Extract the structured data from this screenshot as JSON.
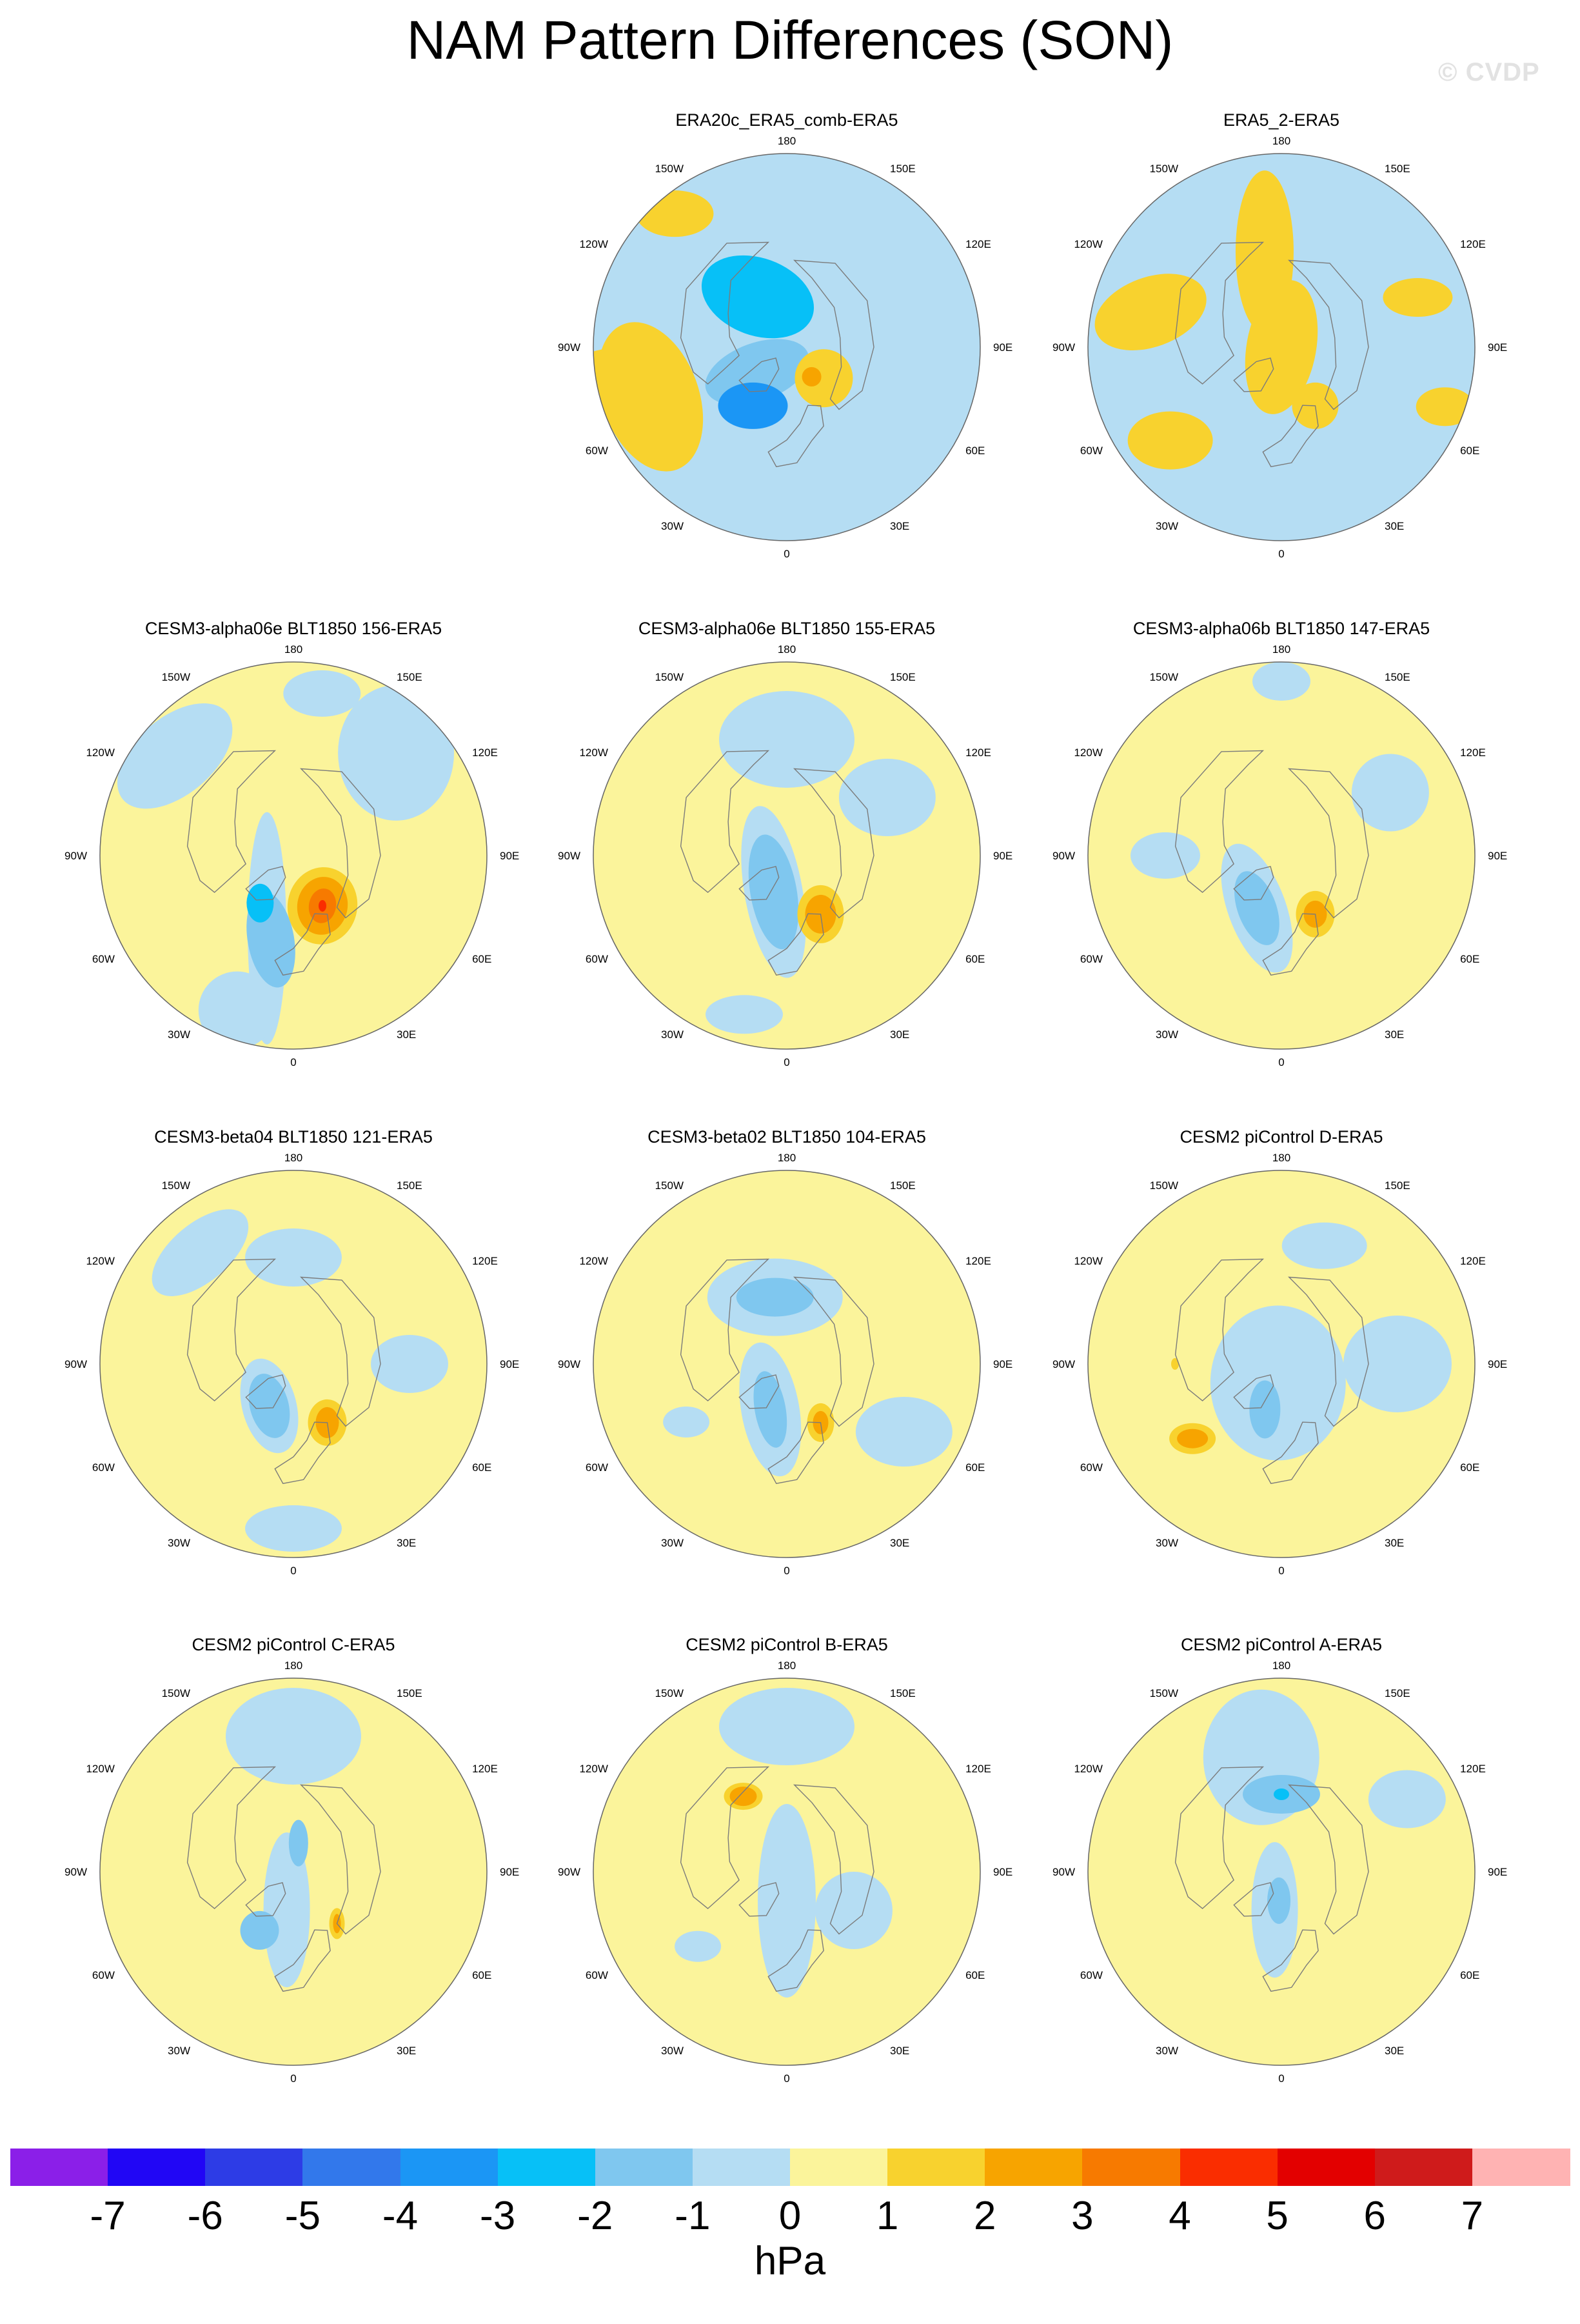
{
  "title": "NAM Pattern Differences (SON)",
  "watermark": "© CVDP",
  "lon_labels": {
    "lon_180": "180",
    "lon_150w": "150W",
    "lon_150e": "150E",
    "lon_120w": "120W",
    "lon_120e": "120E",
    "lon_90w": "90W",
    "lon_90e": "90E",
    "lon_60w": "60W",
    "lon_60e": "60E",
    "lon_30w": "30W",
    "lon_30e": "30E",
    "lon_0": "0"
  },
  "colors": {
    "land": "#7b7b7b",
    "bounds": [
      -7,
      -6,
      -5,
      -4,
      -3,
      -2,
      -1,
      0,
      1,
      2,
      3,
      4,
      5,
      6,
      7
    ],
    "palette": [
      "#8b1fe8",
      "#2106f5",
      "#2d3ce6",
      "#3278eb",
      "#1b96f5",
      "#07c0f7",
      "#7fc7ef",
      "#b5ddf3",
      "#fbf49b",
      "#f8d22e",
      "#f7a400",
      "#f77a00",
      "#fa2d00",
      "#e30000",
      "#cf1b1b",
      "#ffb3b3"
    ]
  },
  "colorbar": {
    "ticks": [
      "-7",
      "-6",
      "-5",
      "-4",
      "-3",
      "-2",
      "-1",
      "0",
      "1",
      "2",
      "3",
      "4",
      "5",
      "6",
      "7"
    ],
    "unit": "hPa"
  },
  "panels": [
    {
      "title": "ERA20c_ERA5_comb-ERA5",
      "bg": "b",
      "blobs": [
        {
          "a": -130,
          "r": 0.62,
          "rx": 0.45,
          "ry": 0.15,
          "rot": -130,
          "v": -1
        },
        {
          "a": -150,
          "r": 0.3,
          "rx": 0.3,
          "ry": 0.2,
          "rot": 20,
          "v": -3
        },
        {
          "a": -40,
          "r": 0.25,
          "rx": 0.12,
          "ry": 0.1,
          "rot": 0,
          "v": -3
        },
        {
          "a": -50,
          "r": 0.2,
          "rx": 0.28,
          "ry": 0.15,
          "rot": -20,
          "v": -2
        },
        {
          "a": -30,
          "r": 0.35,
          "rx": 0.18,
          "ry": 0.12,
          "rot": 0,
          "v": -4
        },
        {
          "a": 50,
          "r": 0.25,
          "rx": 0.15,
          "ry": 0.15,
          "rot": 0,
          "v": 1
        },
        {
          "a": 40,
          "r": 0.2,
          "rx": 0.05,
          "ry": 0.05,
          "rot": 0,
          "v": 2
        },
        {
          "a": -70,
          "r": 0.75,
          "rx": 0.25,
          "ry": 0.4,
          "rot": -20,
          "v": 1
        },
        {
          "a": -80,
          "r": 0.9,
          "rx": 0.25,
          "ry": 0.15,
          "rot": 0,
          "v": 1
        },
        {
          "a": -140,
          "r": 0.9,
          "rx": 0.2,
          "ry": 0.12,
          "rot": 0,
          "v": 1
        }
      ]
    },
    {
      "title": "ERA5_2-ERA5",
      "bg": "b",
      "blobs": [
        {
          "a": 0,
          "r": 0.0,
          "rx": 0.18,
          "ry": 0.35,
          "rot": 10,
          "v": 1
        },
        {
          "a": -170,
          "r": 0.5,
          "rx": 0.15,
          "ry": 0.42,
          "rot": 0,
          "v": 1
        },
        {
          "a": -105,
          "r": 0.7,
          "rx": 0.3,
          "ry": 0.18,
          "rot": -20,
          "v": 1
        },
        {
          "a": -50,
          "r": 0.75,
          "rx": 0.22,
          "ry": 0.15,
          "rot": 0,
          "v": 1
        },
        {
          "a": 30,
          "r": 0.35,
          "rx": 0.12,
          "ry": 0.12,
          "rot": 0,
          "v": 1
        },
        {
          "a": 70,
          "r": 0.9,
          "rx": 0.15,
          "ry": 0.1,
          "rot": 0,
          "v": 1
        },
        {
          "a": 110,
          "r": 0.75,
          "rx": 0.18,
          "ry": 0.1,
          "rot": 0,
          "v": 1
        }
      ]
    },
    {
      "title": "CESM3-alpha06e BLT1850 156-ERA5",
      "bg": "y",
      "blobs": [
        {
          "a": -20,
          "r": 0.4,
          "rx": 0.1,
          "ry": 0.6,
          "rot": 0,
          "v": -1
        },
        {
          "a": 135,
          "r": 0.75,
          "rx": 0.3,
          "ry": 0.35,
          "rot": 0,
          "v": -1
        },
        {
          "a": -130,
          "r": 0.8,
          "rx": 0.35,
          "ry": 0.2,
          "rot": -40,
          "v": -1
        },
        {
          "a": 170,
          "r": 0.85,
          "rx": 0.2,
          "ry": 0.12,
          "rot": 0,
          "v": -1
        },
        {
          "a": -20,
          "r": 0.85,
          "rx": 0.2,
          "ry": 0.2,
          "rot": 0,
          "v": -1
        },
        {
          "a": -15,
          "r": 0.45,
          "rx": 0.12,
          "ry": 0.25,
          "rot": -10,
          "v": -2
        },
        {
          "a": -35,
          "r": 0.3,
          "rx": 0.07,
          "ry": 0.1,
          "rot": 0,
          "v": -3
        },
        {
          "a": 30,
          "r": 0.3,
          "rx": 0.18,
          "ry": 0.2,
          "rot": 10,
          "v": 1
        },
        {
          "a": 30,
          "r": 0.3,
          "rx": 0.13,
          "ry": 0.15,
          "rot": 10,
          "v": 2
        },
        {
          "a": 30,
          "r": 0.3,
          "rx": 0.07,
          "ry": 0.09,
          "rot": 10,
          "v": 3
        },
        {
          "a": 30,
          "r": 0.3,
          "rx": 0.02,
          "ry": 0.03,
          "rot": 0,
          "v": 4
        }
      ]
    },
    {
      "title": "CESM3-alpha06e BLT1850 155-ERA5",
      "bg": "y",
      "blobs": [
        {
          "a": 180,
          "r": 0.6,
          "rx": 0.35,
          "ry": 0.25,
          "rot": 0,
          "v": -1
        },
        {
          "a": 120,
          "r": 0.6,
          "rx": 0.25,
          "ry": 0.2,
          "rot": 0,
          "v": -1
        },
        {
          "a": -20,
          "r": 0.2,
          "rx": 0.15,
          "ry": 0.45,
          "rot": -10,
          "v": -1
        },
        {
          "a": -20,
          "r": 0.2,
          "rx": 0.12,
          "ry": 0.3,
          "rot": -10,
          "v": -2
        },
        {
          "a": -15,
          "r": 0.85,
          "rx": 0.2,
          "ry": 0.1,
          "rot": 0,
          "v": -1
        },
        {
          "a": 30,
          "r": 0.35,
          "rx": 0.12,
          "ry": 0.15,
          "rot": 0,
          "v": 1
        },
        {
          "a": 30,
          "r": 0.35,
          "rx": 0.08,
          "ry": 0.1,
          "rot": 0,
          "v": 2
        }
      ]
    },
    {
      "title": "CESM3-alpha06b BLT1850 147-ERA5",
      "bg": "y",
      "blobs": [
        {
          "a": -25,
          "r": 0.3,
          "rx": 0.15,
          "ry": 0.35,
          "rot": -20,
          "v": -1
        },
        {
          "a": -25,
          "r": 0.3,
          "rx": 0.1,
          "ry": 0.2,
          "rot": -20,
          "v": -2
        },
        {
          "a": 120,
          "r": 0.65,
          "rx": 0.2,
          "ry": 0.2,
          "rot": 0,
          "v": -1
        },
        {
          "a": 180,
          "r": 0.9,
          "rx": 0.15,
          "ry": 0.1,
          "rot": 0,
          "v": -1
        },
        {
          "a": -90,
          "r": 0.6,
          "rx": 0.18,
          "ry": 0.12,
          "rot": 0,
          "v": -1
        },
        {
          "a": 30,
          "r": 0.35,
          "rx": 0.1,
          "ry": 0.12,
          "rot": 0,
          "v": 1
        },
        {
          "a": 30,
          "r": 0.35,
          "rx": 0.06,
          "ry": 0.07,
          "rot": 0,
          "v": 2
        }
      ]
    },
    {
      "title": "CESM3-beta04 BLT1850 121-ERA5",
      "bg": "y",
      "blobs": [
        {
          "a": -30,
          "r": 0.25,
          "rx": 0.14,
          "ry": 0.25,
          "rot": -15,
          "v": -1
        },
        {
          "a": -30,
          "r": 0.25,
          "rx": 0.1,
          "ry": 0.17,
          "rot": -15,
          "v": -2
        },
        {
          "a": 180,
          "r": 0.55,
          "rx": 0.25,
          "ry": 0.15,
          "rot": 0,
          "v": -1
        },
        {
          "a": 90,
          "r": 0.6,
          "rx": 0.2,
          "ry": 0.15,
          "rot": 0,
          "v": -1
        },
        {
          "a": -140,
          "r": 0.75,
          "rx": 0.3,
          "ry": 0.15,
          "rot": -40,
          "v": -1
        },
        {
          "a": 0,
          "r": 0.85,
          "rx": 0.25,
          "ry": 0.12,
          "rot": 0,
          "v": -1
        },
        {
          "a": 30,
          "r": 0.35,
          "rx": 0.1,
          "ry": 0.12,
          "rot": 0,
          "v": 1
        },
        {
          "a": 30,
          "r": 0.35,
          "rx": 0.06,
          "ry": 0.08,
          "rot": 0,
          "v": 2
        }
      ]
    },
    {
      "title": "CESM3-beta02 BLT1850 104-ERA5",
      "bg": "y",
      "blobs": [
        {
          "a": -170,
          "r": 0.35,
          "rx": 0.35,
          "ry": 0.2,
          "rot": 0,
          "v": -1
        },
        {
          "a": -170,
          "r": 0.35,
          "rx": 0.2,
          "ry": 0.1,
          "rot": 0,
          "v": -2
        },
        {
          "a": -20,
          "r": 0.25,
          "rx": 0.15,
          "ry": 0.35,
          "rot": -10,
          "v": -1
        },
        {
          "a": -20,
          "r": 0.25,
          "rx": 0.08,
          "ry": 0.2,
          "rot": -10,
          "v": -2
        },
        {
          "a": 60,
          "r": 0.7,
          "rx": 0.25,
          "ry": 0.18,
          "rot": 0,
          "v": -1
        },
        {
          "a": -60,
          "r": 0.6,
          "rx": 0.12,
          "ry": 0.08,
          "rot": 0,
          "v": -1
        },
        {
          "a": 30,
          "r": 0.35,
          "rx": 0.07,
          "ry": 0.1,
          "rot": 0,
          "v": 1
        },
        {
          "a": 30,
          "r": 0.35,
          "rx": 0.04,
          "ry": 0.06,
          "rot": 0,
          "v": 2
        }
      ]
    },
    {
      "title": "CESM2 piControl D-ERA5",
      "bg": "y",
      "blobs": [
        {
          "a": -10,
          "r": 0.1,
          "rx": 0.35,
          "ry": 0.4,
          "rot": 0,
          "v": -1
        },
        {
          "a": -20,
          "r": 0.25,
          "rx": 0.08,
          "ry": 0.15,
          "rot": 0,
          "v": -2
        },
        {
          "a": 90,
          "r": 0.6,
          "rx": 0.28,
          "ry": 0.25,
          "rot": 0,
          "v": -1
        },
        {
          "a": 160,
          "r": 0.65,
          "rx": 0.22,
          "ry": 0.12,
          "rot": 0,
          "v": -1
        },
        {
          "a": -50,
          "r": 0.6,
          "rx": 0.12,
          "ry": 0.08,
          "rot": 0,
          "v": 1
        },
        {
          "a": -50,
          "r": 0.6,
          "rx": 0.08,
          "ry": 0.05,
          "rot": 0,
          "v": 2
        },
        {
          "a": -90,
          "r": 0.55,
          "rx": 0.02,
          "ry": 0.03,
          "rot": 0,
          "v": 1
        }
      ]
    },
    {
      "title": "CESM2 piControl C-ERA5",
      "bg": "y",
      "blobs": [
        {
          "a": 180,
          "r": 0.7,
          "rx": 0.35,
          "ry": 0.25,
          "rot": 0,
          "v": -1
        },
        {
          "a": -10,
          "r": 0.2,
          "rx": 0.12,
          "ry": 0.4,
          "rot": 0,
          "v": -1
        },
        {
          "a": -30,
          "r": 0.35,
          "rx": 0.1,
          "ry": 0.1,
          "rot": 0,
          "v": -2
        },
        {
          "a": 170,
          "r": 0.15,
          "rx": 0.05,
          "ry": 0.12,
          "rot": 0,
          "v": -2
        },
        {
          "a": 40,
          "r": 0.35,
          "rx": 0.04,
          "ry": 0.08,
          "rot": 0,
          "v": 1
        },
        {
          "a": 40,
          "r": 0.35,
          "rx": 0.02,
          "ry": 0.05,
          "rot": 0,
          "v": 2
        }
      ]
    },
    {
      "title": "CESM2 piControl B-ERA5",
      "bg": "y",
      "blobs": [
        {
          "a": 0,
          "r": 0.15,
          "rx": 0.15,
          "ry": 0.5,
          "rot": 0,
          "v": -1
        },
        {
          "a": 180,
          "r": 0.75,
          "rx": 0.35,
          "ry": 0.2,
          "rot": 0,
          "v": -1
        },
        {
          "a": 60,
          "r": 0.4,
          "rx": 0.2,
          "ry": 0.2,
          "rot": 0,
          "v": -1
        },
        {
          "a": -50,
          "r": 0.6,
          "rx": 0.12,
          "ry": 0.08,
          "rot": 0,
          "v": -1
        },
        {
          "a": -150,
          "r": 0.45,
          "rx": 0.1,
          "ry": 0.07,
          "rot": 0,
          "v": 1
        },
        {
          "a": -150,
          "r": 0.45,
          "rx": 0.07,
          "ry": 0.05,
          "rot": 0,
          "v": 2
        }
      ]
    },
    {
      "title": "CESM2 piControl A-ERA5",
      "bg": "y",
      "blobs": [
        {
          "a": -170,
          "r": 0.6,
          "rx": 0.3,
          "ry": 0.35,
          "rot": 0,
          "v": -1
        },
        {
          "a": -180,
          "r": 0.4,
          "rx": 0.2,
          "ry": 0.1,
          "rot": 0,
          "v": -2
        },
        {
          "a": -180,
          "r": 0.4,
          "rx": 0.04,
          "ry": 0.03,
          "rot": 0,
          "v": -3
        },
        {
          "a": -10,
          "r": 0.2,
          "rx": 0.12,
          "ry": 0.35,
          "rot": 0,
          "v": -1
        },
        {
          "a": -5,
          "r": 0.15,
          "rx": 0.06,
          "ry": 0.12,
          "rot": 0,
          "v": -2
        },
        {
          "a": 120,
          "r": 0.75,
          "rx": 0.2,
          "ry": 0.15,
          "rot": 0,
          "v": -1
        }
      ]
    }
  ]
}
